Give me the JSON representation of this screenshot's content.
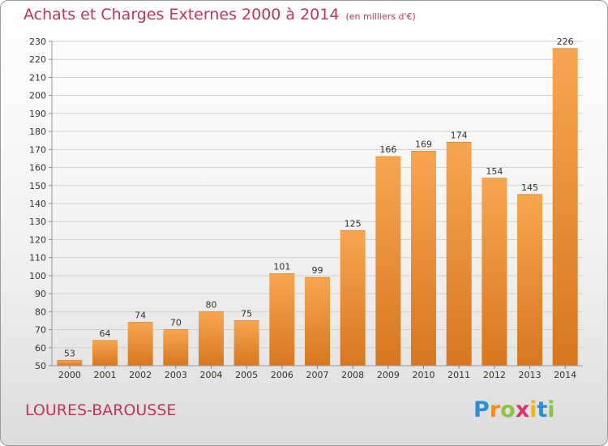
{
  "header": {
    "title": "Achats et Charges Externes 2000 à 2014",
    "unit": "(en milliers d'€)"
  },
  "footer": {
    "commune": "LOURES-BAROUSSE",
    "logo_text": "Proxiti"
  },
  "colors": {
    "title": "#c0365a",
    "bar_top": "#f7a650",
    "bar_bottom": "#d8771f",
    "grid": "#d0d0d0"
  },
  "chart_data": {
    "type": "bar",
    "title": "Achats et Charges Externes 2000 à 2014",
    "categories": [
      "2000",
      "2001",
      "2002",
      "2003",
      "2004",
      "2005",
      "2006",
      "2007",
      "2008",
      "2009",
      "2010",
      "2011",
      "2012",
      "2013",
      "2014"
    ],
    "values": [
      53,
      64,
      74,
      70,
      80,
      75,
      101,
      99,
      125,
      166,
      169,
      174,
      154,
      145,
      226
    ],
    "ylim": [
      50,
      230
    ],
    "ytick_step": 10,
    "grid": true,
    "data_labels": true
  }
}
